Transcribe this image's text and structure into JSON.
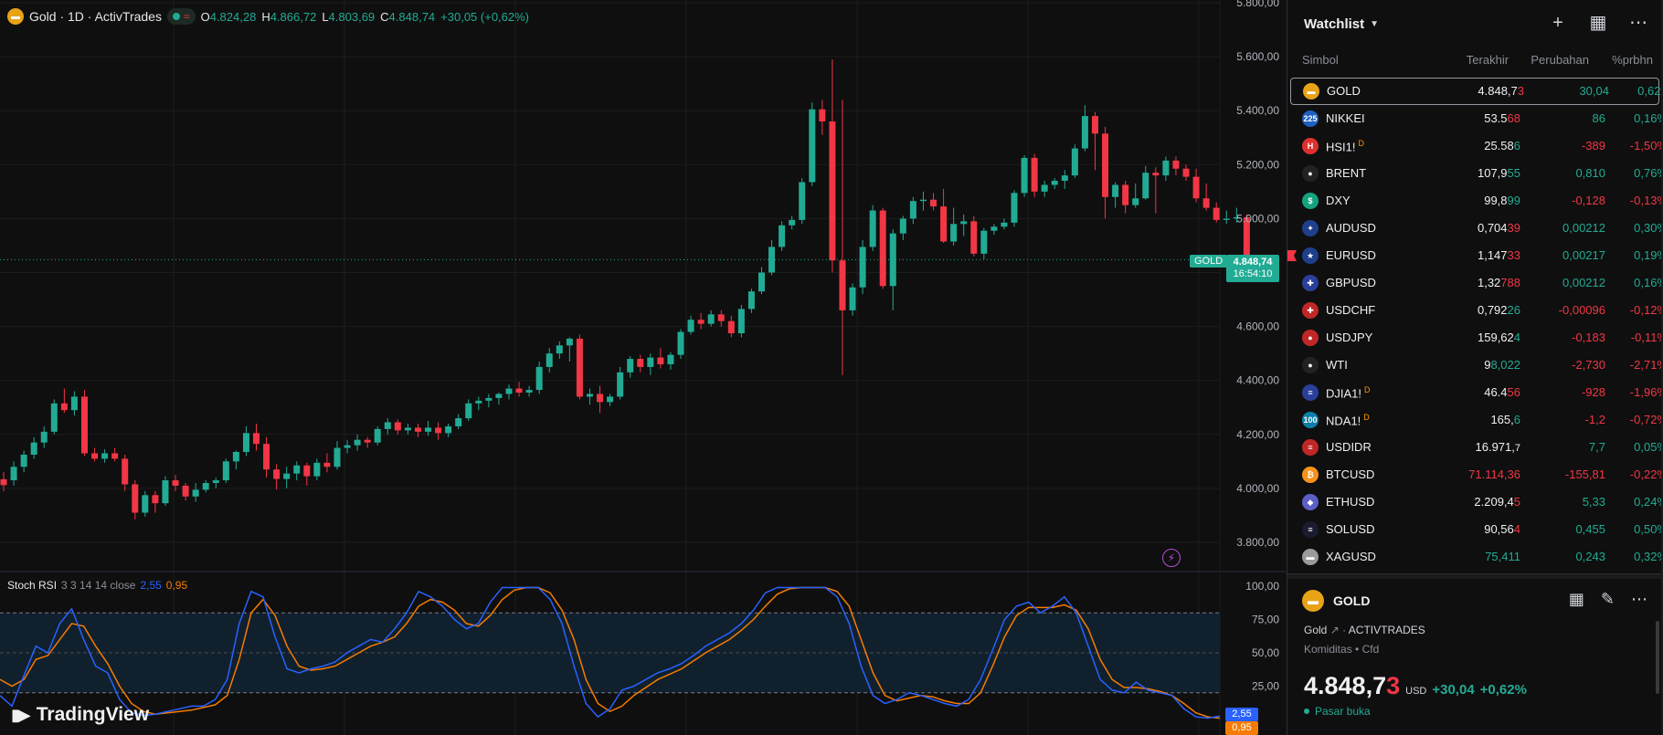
{
  "chart": {
    "symbol_title": "Gold · 1D · ActivTrades",
    "ohlc": [
      {
        "label": "O",
        "value": "4.824,28"
      },
      {
        "label": "H",
        "value": "4.866,72"
      },
      {
        "label": "L",
        "value": "4.803,69"
      },
      {
        "label": "C",
        "value": "4.848,74"
      }
    ],
    "change": "+30,05 (+0,62%)",
    "price_tag": "GOLD",
    "price_label": "4.848,74",
    "countdown": "16:54:10",
    "price_axis": [
      "5.800,00",
      "5.600,00",
      "5.400,00",
      "5.200,00",
      "5.000,00",
      "4.800,00",
      "4.600,00",
      "4.400,00",
      "4.200,00",
      "4.000,00",
      "3.800,00"
    ],
    "rsi_title": "Stoch RSI",
    "rsi_params": "3 3 14 14 close",
    "rsi_k": "2,55",
    "rsi_d": "0,95",
    "rsi_axis": [
      "100,00",
      "75,00",
      "50,00",
      "25,00"
    ],
    "logo_text": "TradingView",
    "colors": {
      "up": "#22ab94",
      "down": "#f23645",
      "k": "#2962ff",
      "d": "#f57c00"
    }
  },
  "chart_data": {
    "type": "candlestick",
    "ylim": [
      3700,
      5900
    ],
    "candles": [
      [
        4034,
        4060,
        3990,
        4012
      ],
      [
        4030,
        4100,
        4010,
        4080
      ],
      [
        4080,
        4140,
        4060,
        4125
      ],
      [
        4125,
        4190,
        4110,
        4170
      ],
      [
        4170,
        4230,
        4150,
        4210
      ],
      [
        4210,
        4330,
        4200,
        4315
      ],
      [
        4315,
        4370,
        4280,
        4290
      ],
      [
        4290,
        4360,
        4270,
        4340
      ],
      [
        4340,
        4365,
        4120,
        4130
      ],
      [
        4130,
        4150,
        4100,
        4110
      ],
      [
        4110,
        4145,
        4095,
        4130
      ],
      [
        4130,
        4150,
        4100,
        4110
      ],
      [
        4110,
        4125,
        3990,
        4015
      ],
      [
        4015,
        4030,
        3885,
        3910
      ],
      [
        3910,
        3990,
        3895,
        3975
      ],
      [
        3975,
        3990,
        3910,
        3945
      ],
      [
        3945,
        4045,
        3935,
        4030
      ],
      [
        4030,
        4050,
        3990,
        4010
      ],
      [
        4010,
        4020,
        3955,
        3970
      ],
      [
        3970,
        4020,
        3950,
        3995
      ],
      [
        3995,
        4030,
        3985,
        4020
      ],
      [
        4020,
        4040,
        4000,
        4030
      ],
      [
        4030,
        4110,
        4020,
        4100
      ],
      [
        4100,
        4140,
        4070,
        4135
      ],
      [
        4135,
        4230,
        4120,
        4205
      ],
      [
        4205,
        4240,
        4140,
        4165
      ],
      [
        4165,
        4190,
        4040,
        4070
      ],
      [
        4070,
        4090,
        3995,
        4035
      ],
      [
        4035,
        4080,
        4000,
        4055
      ],
      [
        4055,
        4100,
        4030,
        4085
      ],
      [
        4085,
        4095,
        4010,
        4045
      ],
      [
        4045,
        4110,
        4030,
        4095
      ],
      [
        4095,
        4130,
        4060,
        4080
      ],
      [
        4080,
        4175,
        4070,
        4150
      ],
      [
        4150,
        4180,
        4130,
        4160
      ],
      [
        4160,
        4200,
        4140,
        4180
      ],
      [
        4180,
        4190,
        4150,
        4170
      ],
      [
        4170,
        4230,
        4160,
        4220
      ],
      [
        4220,
        4260,
        4200,
        4245
      ],
      [
        4245,
        4255,
        4200,
        4215
      ],
      [
        4215,
        4240,
        4200,
        4225
      ],
      [
        4225,
        4240,
        4190,
        4210
      ],
      [
        4210,
        4250,
        4195,
        4225
      ],
      [
        4225,
        4245,
        4180,
        4205
      ],
      [
        4205,
        4240,
        4190,
        4230
      ],
      [
        4230,
        4275,
        4220,
        4260
      ],
      [
        4260,
        4330,
        4250,
        4315
      ],
      [
        4315,
        4340,
        4290,
        4325
      ],
      [
        4325,
        4350,
        4300,
        4335
      ],
      [
        4335,
        4355,
        4310,
        4350
      ],
      [
        4350,
        4385,
        4330,
        4370
      ],
      [
        4370,
        4395,
        4340,
        4355
      ],
      [
        4355,
        4380,
        4340,
        4365
      ],
      [
        4365,
        4470,
        4350,
        4450
      ],
      [
        4450,
        4520,
        4430,
        4500
      ],
      [
        4500,
        4545,
        4480,
        4530
      ],
      [
        4530,
        4560,
        4470,
        4555
      ],
      [
        4555,
        4570,
        4330,
        4340
      ],
      [
        4340,
        4370,
        4310,
        4350
      ],
      [
        4350,
        4380,
        4280,
        4320
      ],
      [
        4320,
        4350,
        4305,
        4340
      ],
      [
        4340,
        4450,
        4330,
        4430
      ],
      [
        4430,
        4490,
        4410,
        4480
      ],
      [
        4480,
        4495,
        4430,
        4450
      ],
      [
        4450,
        4500,
        4420,
        4485
      ],
      [
        4485,
        4520,
        4445,
        4460
      ],
      [
        4460,
        4505,
        4440,
        4495
      ],
      [
        4495,
        4590,
        4480,
        4580
      ],
      [
        4580,
        4640,
        4570,
        4625
      ],
      [
        4625,
        4650,
        4590,
        4610
      ],
      [
        4610,
        4660,
        4600,
        4645
      ],
      [
        4645,
        4660,
        4600,
        4620
      ],
      [
        4620,
        4640,
        4560,
        4575
      ],
      [
        4575,
        4680,
        4560,
        4665
      ],
      [
        4665,
        4740,
        4650,
        4730
      ],
      [
        4730,
        4820,
        4720,
        4800
      ],
      [
        4800,
        4920,
        4790,
        4895
      ],
      [
        4895,
        4990,
        4880,
        4975
      ],
      [
        4975,
        5010,
        4960,
        4995
      ],
      [
        4995,
        5150,
        4980,
        5135
      ],
      [
        5135,
        5430,
        5120,
        5405
      ],
      [
        5405,
        5440,
        5310,
        5360
      ],
      [
        5360,
        5590,
        4800,
        4845
      ],
      [
        4845,
        5440,
        4420,
        4660
      ],
      [
        4660,
        4760,
        4640,
        4745
      ],
      [
        4745,
        4920,
        4720,
        4895
      ],
      [
        4895,
        5050,
        4880,
        5030
      ],
      [
        5030,
        5040,
        4740,
        4750
      ],
      [
        4750,
        4960,
        4660,
        4945
      ],
      [
        4945,
        5010,
        4920,
        5000
      ],
      [
        5000,
        5080,
        4980,
        5065
      ],
      [
        5065,
        5100,
        5030,
        5070
      ],
      [
        5070,
        5095,
        5030,
        5045
      ],
      [
        5045,
        5110,
        4910,
        4915
      ],
      [
        4915,
        5040,
        4900,
        4980
      ],
      [
        4980,
        5015,
        4935,
        4990
      ],
      [
        4990,
        5010,
        4860,
        4870
      ],
      [
        4870,
        4965,
        4850,
        4955
      ],
      [
        4955,
        4980,
        4940,
        4970
      ],
      [
        4970,
        5000,
        4960,
        4985
      ],
      [
        4985,
        5105,
        4970,
        5095
      ],
      [
        5095,
        5235,
        5080,
        5225
      ],
      [
        5225,
        5240,
        5080,
        5100
      ],
      [
        5100,
        5140,
        5080,
        5125
      ],
      [
        5125,
        5150,
        5110,
        5140
      ],
      [
        5140,
        5180,
        5110,
        5160
      ],
      [
        5160,
        5275,
        5150,
        5260
      ],
      [
        5260,
        5420,
        5250,
        5380
      ],
      [
        5380,
        5395,
        5180,
        5315
      ],
      [
        5315,
        5340,
        5000,
        5080
      ],
      [
        5080,
        5135,
        5040,
        5125
      ],
      [
        5125,
        5140,
        5020,
        5050
      ],
      [
        5050,
        5130,
        5040,
        5075
      ],
      [
        5075,
        5195,
        5070,
        5170
      ],
      [
        5170,
        5190,
        5020,
        5160
      ],
      [
        5160,
        5230,
        5140,
        5215
      ],
      [
        5215,
        5230,
        5160,
        5185
      ],
      [
        5185,
        5200,
        5140,
        5155
      ],
      [
        5155,
        5185,
        5060,
        5075
      ],
      [
        5075,
        5130,
        5030,
        5040
      ],
      [
        5040,
        5060,
        4985,
        4995
      ],
      [
        4995,
        5030,
        4980,
        5000
      ],
      [
        5000,
        5040,
        4985,
        5005
      ],
      [
        5005,
        5015,
        4830,
        4840
      ],
      [
        4820,
        4866,
        4803,
        4848
      ]
    ],
    "stoch_k": [
      18,
      10,
      33,
      55,
      50,
      72,
      83,
      60,
      40,
      35,
      15,
      5,
      3,
      4,
      6,
      8,
      10,
      10,
      15,
      30,
      72,
      96,
      92,
      62,
      38,
      35,
      38,
      40,
      43,
      50,
      55,
      60,
      58,
      68,
      80,
      96,
      92,
      85,
      75,
      68,
      72,
      88,
      99,
      99,
      99,
      99,
      90,
      72,
      40,
      12,
      2,
      8,
      22,
      25,
      30,
      35,
      38,
      42,
      48,
      55,
      60,
      65,
      72,
      82,
      95,
      99,
      99,
      99,
      99,
      99,
      92,
      72,
      40,
      18,
      12,
      15,
      20,
      18,
      15,
      12,
      10,
      15,
      30,
      52,
      75,
      85,
      88,
      80,
      85,
      92,
      80,
      55,
      30,
      22,
      20,
      28,
      22,
      20,
      18,
      8,
      2,
      1,
      2.55
    ],
    "stoch_d": [
      30,
      25,
      30,
      45,
      48,
      60,
      72,
      70,
      55,
      42,
      25,
      12,
      6,
      4,
      5,
      6,
      7,
      9,
      11,
      18,
      45,
      80,
      90,
      78,
      55,
      40,
      37,
      38,
      40,
      45,
      50,
      55,
      58,
      62,
      72,
      85,
      90,
      88,
      82,
      72,
      70,
      78,
      90,
      97,
      99,
      99,
      95,
      82,
      60,
      30,
      12,
      6,
      10,
      18,
      24,
      30,
      34,
      38,
      44,
      50,
      55,
      60,
      67,
      75,
      85,
      94,
      98,
      99,
      99,
      99,
      96,
      85,
      60,
      35,
      18,
      14,
      16,
      18,
      17,
      14,
      12,
      12,
      20,
      40,
      62,
      78,
      84,
      84,
      84,
      86,
      82,
      68,
      45,
      30,
      24,
      24,
      23,
      21,
      18,
      12,
      5,
      2,
      0.95
    ]
  },
  "watchlist": {
    "title": "Watchlist",
    "cols": {
      "symbol": "Simbol",
      "last": "Terakhir",
      "change": "Perubahan",
      "pct": "%prbhn"
    },
    "rows": [
      {
        "icon": "gold-bar-icon",
        "icon_bg": "#e8a317",
        "icon_text": "▬",
        "name": "GOLD",
        "sup": "",
        "last_a": "4.848,7",
        "last_b": "3",
        "last_b_dir": "dn",
        "last_color": "",
        "chg": "30,04",
        "chg_dir": "up",
        "pct": "0,62%",
        "pct_dir": "up",
        "selected": true,
        "flag": false
      },
      {
        "icon": "nikkei-225-icon",
        "icon_bg": "#1f5fbf",
        "icon_text": "225",
        "name": "NIKKEI",
        "sup": "",
        "last_a": "53.5",
        "last_b": "68",
        "last_b_dir": "dn",
        "last_color": "",
        "chg": "86",
        "chg_dir": "up",
        "pct": "0,16%",
        "pct_dir": "up",
        "selected": false,
        "flag": false
      },
      {
        "icon": "hsi-icon",
        "icon_bg": "#e03030",
        "icon_text": "H",
        "name": "HSI1!",
        "sup": "D",
        "last_a": "25.58",
        "last_b": "6",
        "last_b_dir": "up",
        "last_color": "",
        "chg": "-389",
        "chg_dir": "dn",
        "pct": "-1,50%",
        "pct_dir": "dn",
        "selected": false,
        "flag": false
      },
      {
        "icon": "oil-drop-icon",
        "icon_bg": "#222",
        "icon_text": "●",
        "name": "BRENT",
        "sup": "",
        "last_a": "107,9",
        "last_b": "55",
        "last_b_dir": "up",
        "last_color": "",
        "chg": "0,810",
        "chg_dir": "up",
        "pct": "0,76%",
        "pct_dir": "up",
        "selected": false,
        "flag": false
      },
      {
        "icon": "dollar-index-icon",
        "icon_bg": "#14a37f",
        "icon_text": "$",
        "name": "DXY",
        "sup": "",
        "last_a": "99,8",
        "last_b": "99",
        "last_b_dir": "up",
        "last_color": "",
        "chg": "-0,128",
        "chg_dir": "dn",
        "pct": "-0,13%",
        "pct_dir": "dn",
        "selected": false,
        "flag": false
      },
      {
        "icon": "aud-usd-flag-icon",
        "icon_bg": "#1e3f8a",
        "icon_text": "✦",
        "name": "AUDUSD",
        "sup": "",
        "last_a": "0,704",
        "last_b": "39",
        "last_b_dir": "dn",
        "last_color": "",
        "chg": "0,00212",
        "chg_dir": "up",
        "pct": "0,30%",
        "pct_dir": "up",
        "selected": false,
        "flag": false
      },
      {
        "icon": "eur-usd-flag-icon",
        "icon_bg": "#1e3f8a",
        "icon_text": "★",
        "name": "EURUSD",
        "sup": "",
        "last_a": "1,147",
        "last_b": "33",
        "last_b_dir": "dn",
        "last_color": "",
        "chg": "0,00217",
        "chg_dir": "up",
        "pct": "0,19%",
        "pct_dir": "up",
        "selected": false,
        "flag": true
      },
      {
        "icon": "gbp-usd-flag-icon",
        "icon_bg": "#2a3f9a",
        "icon_text": "✚",
        "name": "GBPUSD",
        "sup": "",
        "last_a": "1,32",
        "last_b": "788",
        "last_b_dir": "dn",
        "last_color": "",
        "chg": "0,00212",
        "chg_dir": "up",
        "pct": "0,16%",
        "pct_dir": "up",
        "selected": false,
        "flag": false
      },
      {
        "icon": "usd-chf-flag-icon",
        "icon_bg": "#c02828",
        "icon_text": "✚",
        "name": "USDCHF",
        "sup": "",
        "last_a": "0,792",
        "last_b": "26",
        "last_b_dir": "up",
        "last_color": "",
        "chg": "-0,00096",
        "chg_dir": "dn",
        "pct": "-0,12%",
        "pct_dir": "dn",
        "selected": false,
        "flag": false
      },
      {
        "icon": "usd-jpy-flag-icon",
        "icon_bg": "#c02828",
        "icon_text": "●",
        "name": "USDJPY",
        "sup": "",
        "last_a": "159,62",
        "last_b": "4",
        "last_b_dir": "up",
        "last_color": "",
        "chg": "-0,183",
        "chg_dir": "dn",
        "pct": "-0,11%",
        "pct_dir": "dn",
        "selected": false,
        "flag": false
      },
      {
        "icon": "oil-drop-icon",
        "icon_bg": "#222",
        "icon_text": "●",
        "name": "WTI",
        "sup": "",
        "last_a": "9",
        "last_b": "8,022",
        "last_b_dir": "up",
        "last_color": "",
        "chg": "-2,730",
        "chg_dir": "dn",
        "pct": "-2,71%",
        "pct_dir": "dn",
        "selected": false,
        "flag": false
      },
      {
        "icon": "us-flag-icon",
        "icon_bg": "#2a3f9a",
        "icon_text": "≡",
        "name": "DJIA1!",
        "sup": "D",
        "last_a": "46.4",
        "last_b": "56",
        "last_b_dir": "dn",
        "last_color": "",
        "chg": "-928",
        "chg_dir": "dn",
        "pct": "-1,96%",
        "pct_dir": "dn",
        "selected": false,
        "flag": false
      },
      {
        "icon": "nasdaq-100-icon",
        "icon_bg": "#0e7fa8",
        "icon_text": "100",
        "name": "NDA1!",
        "sup": "D",
        "last_a": "165,",
        "last_b": "6",
        "last_b_dir": "up",
        "last_color": "",
        "chg": "-1,2",
        "chg_dir": "dn",
        "pct": "-0,72%",
        "pct_dir": "dn",
        "selected": false,
        "flag": false
      },
      {
        "icon": "usd-idr-flag-icon",
        "icon_bg": "#c02828",
        "icon_text": "≡",
        "name": "USDIDR",
        "sup": "",
        "last_a": "16.971,",
        "last_b": "7",
        "last_b_dir": "",
        "last_color": "",
        "chg": "7,7",
        "chg_dir": "up",
        "pct": "0,05%",
        "pct_dir": "up",
        "selected": false,
        "flag": false
      },
      {
        "icon": "bitcoin-icon",
        "icon_bg": "#f7931a",
        "icon_text": "₿",
        "name": "BTCUSD",
        "sup": "",
        "last_a": "71.114,36",
        "last_b": "",
        "last_b_dir": "",
        "last_color": "dn",
        "chg": "-155,81",
        "chg_dir": "dn",
        "pct": "-0,22%",
        "pct_dir": "dn",
        "selected": false,
        "flag": false
      },
      {
        "icon": "ethereum-icon",
        "icon_bg": "#5b5fc7",
        "icon_text": "◆",
        "name": "ETHUSD",
        "sup": "",
        "last_a": "2.209,4",
        "last_b": "5",
        "last_b_dir": "dn",
        "last_color": "",
        "chg": "5,33",
        "chg_dir": "up",
        "pct": "0,24%",
        "pct_dir": "up",
        "selected": false,
        "flag": false
      },
      {
        "icon": "solana-icon",
        "icon_bg": "#1b1b2f",
        "icon_text": "≡",
        "name": "SOLUSD",
        "sup": "",
        "last_a": "90,56",
        "last_b": "4",
        "last_b_dir": "dn",
        "last_color": "",
        "chg": "0,455",
        "chg_dir": "up",
        "pct": "0,50%",
        "pct_dir": "up",
        "selected": false,
        "flag": false
      },
      {
        "icon": "silver-bar-icon",
        "icon_bg": "#9a9a9a",
        "icon_text": "▬",
        "name": "XAGUSD",
        "sup": "",
        "last_a": "75,411",
        "last_b": "",
        "last_b_dir": "",
        "last_color": "up",
        "chg": "0,243",
        "chg_dir": "up",
        "pct": "0,32%",
        "pct_dir": "up",
        "selected": false,
        "flag": false
      }
    ]
  },
  "detail": {
    "symbol": "GOLD",
    "name": "Gold",
    "exchange": "ACTIVTRADES",
    "category": "Komiditas",
    "type": "Cfd",
    "price_a": "4.848,7",
    "price_b": "3",
    "currency": "USD",
    "change": "+30,04",
    "change_pct": "+0,62%",
    "status": "Pasar buka"
  }
}
